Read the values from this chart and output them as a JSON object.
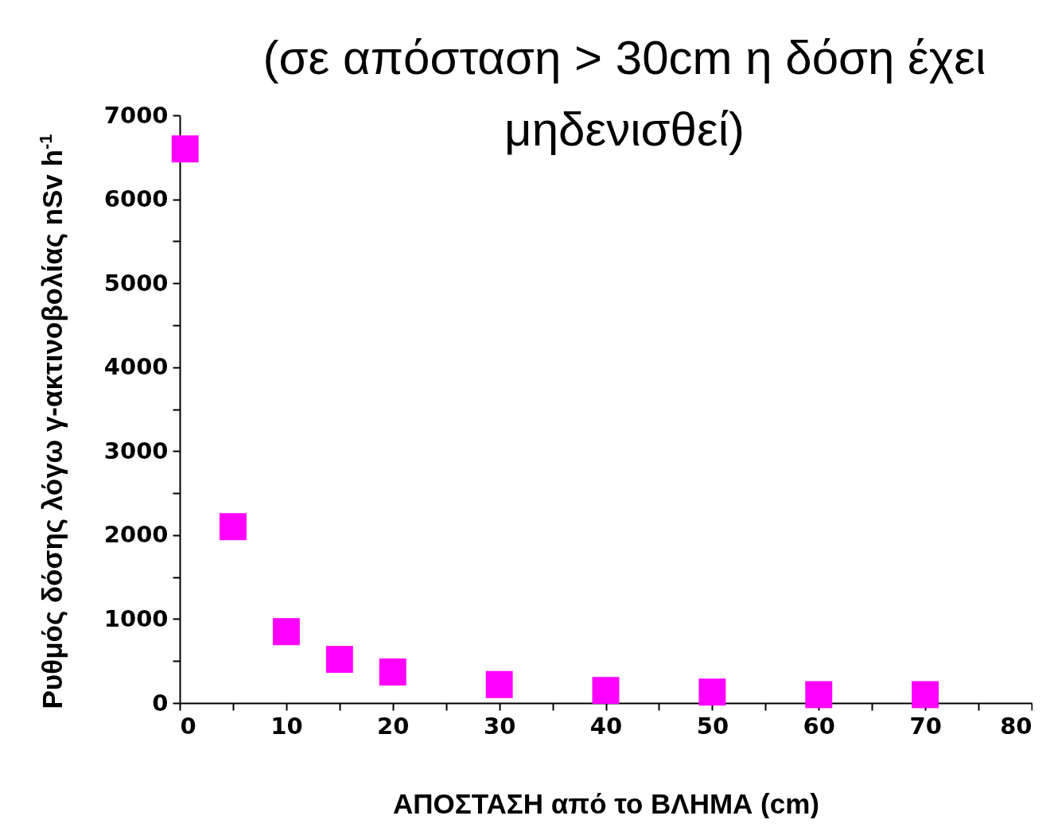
{
  "chart_data": {
    "type": "scatter",
    "title": "(σε απόσταση > 30cm η δόση έχει μηδενισθεί)",
    "xlabel": "ΑΠΟΣΤΑΣΗ από το ΒΛΗΜΑ (cm)",
    "ylabel": "Ρυθμός δόσης λόγω γ-ακτινοβολίας nSv h$^{-1}$",
    "x": [
      0.5,
      5,
      10,
      15,
      20,
      30,
      40,
      50,
      60,
      70
    ],
    "series": [
      {
        "color": "#ff00ff",
        "values": [
          6600,
          2100,
          850,
          520,
          370,
          220,
          150,
          130,
          100,
          100
        ]
      }
    ],
    "marker": "square",
    "grid": false,
    "legend": false,
    "xlim": [
      0,
      80
    ],
    "xticks": [
      0,
      {
        "value": 5,
        "label": null
      },
      10,
      {
        "value": 15,
        "label": null
      },
      20,
      {
        "value": 25,
        "label": null
      },
      30,
      {
        "value": 35,
        "label": null
      },
      40,
      {
        "value": 45,
        "label": null
      },
      50,
      {
        "value": 55,
        "label": null
      },
      60,
      {
        "value": 65,
        "label": null
      },
      70,
      {
        "value": 75,
        "label": null
      },
      80
    ],
    "ylim": [
      0,
      7000
    ],
    "yticks": [
      0,
      {
        "value": 500,
        "label": null
      },
      1000,
      {
        "value": 1500,
        "label": null
      },
      2000,
      {
        "value": 2500,
        "label": null
      },
      3000,
      {
        "value": 3500,
        "label": null
      },
      4000,
      {
        "value": 4500,
        "label": null
      },
      5000,
      {
        "value": 5500,
        "label": null
      },
      6000,
      {
        "value": 6500,
        "label": null
      },
      7000
    ]
  }
}
